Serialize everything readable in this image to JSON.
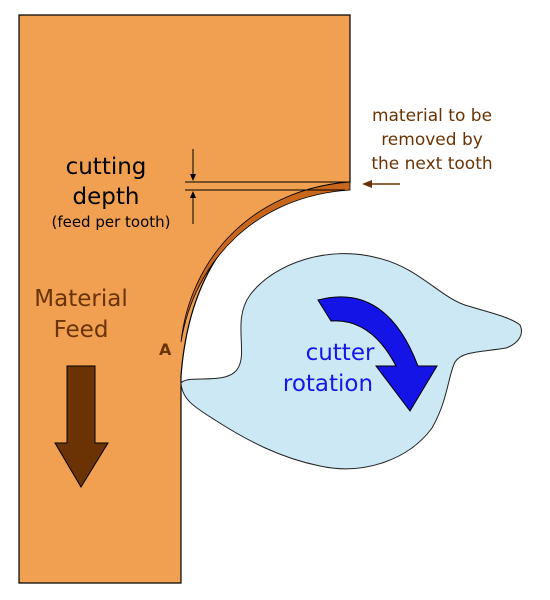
{
  "labels": {
    "cutting": "cutting",
    "depth": "depth",
    "feed_per_tooth": "(feed per tooth)",
    "material": "Material",
    "feed": "Feed",
    "point_a": "A",
    "cutter": "cutter",
    "rotation": "rotation",
    "removed_line1": "material to be",
    "removed_line2": "removed by",
    "removed_line3": "the next tooth"
  },
  "colors": {
    "workpiece": "#f0a050",
    "chip_layer": "#c8661c",
    "cutter_fill": "#cce8f4",
    "rotation_arrow": "#1414e6",
    "feed_arrow": "#6b3304",
    "text_brown": "#6b3304",
    "text_blue": "#1616e8"
  }
}
